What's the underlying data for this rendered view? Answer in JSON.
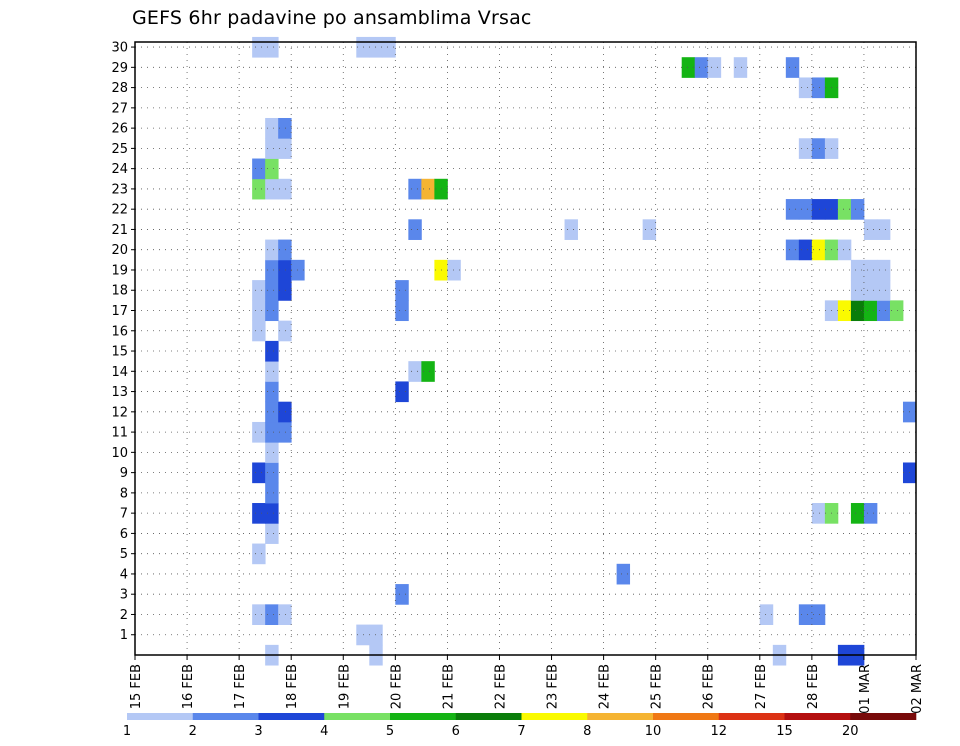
{
  "chart_data": {
    "type": "heatmap",
    "title": "GEFS 6hr padavine po ansamblima Vrsac",
    "xlabel": "",
    "ylabel": "",
    "x_start_date": "15 FEB",
    "x_tick_labels": [
      "15 FEB",
      "16 FEB",
      "17 FEB",
      "18 FEB",
      "19 FEB",
      "20 FEB",
      "21 FEB",
      "22 FEB",
      "23 FEB",
      "24 FEB",
      "25 FEB",
      "26 FEB",
      "27 FEB",
      "28 FEB",
      "01 MAR",
      "02 MAR"
    ],
    "xlim_days": [
      0,
      15
    ],
    "y_tick_labels": [
      "1",
      "2",
      "3",
      "4",
      "5",
      "6",
      "7",
      "8",
      "9",
      "10",
      "11",
      "12",
      "13",
      "14",
      "15",
      "16",
      "17",
      "18",
      "19",
      "20",
      "21",
      "22",
      "23",
      "24",
      "25",
      "26",
      "27",
      "28",
      "29",
      "30"
    ],
    "ylim": [
      0,
      30
    ],
    "grid": true,
    "colorbar": {
      "labels": [
        "1",
        "2",
        "3",
        "4",
        "5",
        "6",
        "7",
        "8",
        "10",
        "12",
        "15",
        "20"
      ],
      "colors": [
        "#b4c8f5",
        "#5a87eb",
        "#1e46d7",
        "#78e164",
        "#14b414",
        "#0a7d0a",
        "#fafa00",
        "#f5b432",
        "#f07814",
        "#dc3214",
        "#b40f0f",
        "#780a0a"
      ]
    },
    "cells": [
      {
        "m": 0,
        "d": 17.75,
        "c": 1
      },
      {
        "m": 0,
        "d": 19.75,
        "c": 1
      },
      {
        "m": 0,
        "d": 27.5,
        "c": 1
      },
      {
        "m": 0,
        "d": 28.75,
        "c": 3
      },
      {
        "m": 0,
        "d": 29.0,
        "c": 3
      },
      {
        "m": 1,
        "d": 19.5,
        "c": 1
      },
      {
        "m": 1,
        "d": 19.75,
        "c": 1
      },
      {
        "m": 2,
        "d": 17.5,
        "c": 1
      },
      {
        "m": 2,
        "d": 17.75,
        "c": 2
      },
      {
        "m": 2,
        "d": 18.0,
        "c": 1
      },
      {
        "m": 2,
        "d": 27.25,
        "c": 1
      },
      {
        "m": 2,
        "d": 28.0,
        "c": 2
      },
      {
        "m": 2,
        "d": 28.25,
        "c": 2
      },
      {
        "m": 3,
        "d": 20.25,
        "c": 2
      },
      {
        "m": 4,
        "d": 24.5,
        "c": 2
      },
      {
        "m": 5,
        "d": 17.5,
        "c": 1
      },
      {
        "m": 6,
        "d": 17.75,
        "c": 1
      },
      {
        "m": 7,
        "d": 17.5,
        "c": 3
      },
      {
        "m": 7,
        "d": 17.75,
        "c": 3
      },
      {
        "m": 7,
        "d": 28.25,
        "c": 1
      },
      {
        "m": 7,
        "d": 28.5,
        "c": 4
      },
      {
        "m": 7,
        "d": 29.0,
        "c": 5
      },
      {
        "m": 7,
        "d": 29.25,
        "c": 2
      },
      {
        "m": 8,
        "d": 17.75,
        "c": 2
      },
      {
        "m": 9,
        "d": 17.5,
        "c": 3
      },
      {
        "m": 9,
        "d": 17.75,
        "c": 2
      },
      {
        "m": 9,
        "d": 30.0,
        "c": 3
      },
      {
        "m": 10,
        "d": 17.75,
        "c": 1
      },
      {
        "m": 11,
        "d": 17.5,
        "c": 1
      },
      {
        "m": 11,
        "d": 17.75,
        "c": 2
      },
      {
        "m": 11,
        "d": 18.0,
        "c": 2
      },
      {
        "m": 12,
        "d": 17.75,
        "c": 2
      },
      {
        "m": 12,
        "d": 18.0,
        "c": 3
      },
      {
        "m": 12,
        "d": 30.0,
        "c": 2
      },
      {
        "m": 13,
        "d": 17.75,
        "c": 2
      },
      {
        "m": 13,
        "d": 20.25,
        "c": 3
      },
      {
        "m": 14,
        "d": 17.75,
        "c": 1
      },
      {
        "m": 14,
        "d": 20.5,
        "c": 1
      },
      {
        "m": 14,
        "d": 20.75,
        "c": 5
      },
      {
        "m": 15,
        "d": 17.75,
        "c": 3
      },
      {
        "m": 16,
        "d": 17.5,
        "c": 1
      },
      {
        "m": 16,
        "d": 18.0,
        "c": 1
      },
      {
        "m": 17,
        "d": 17.5,
        "c": 1
      },
      {
        "m": 17,
        "d": 17.75,
        "c": 2
      },
      {
        "m": 17,
        "d": 20.25,
        "c": 2
      },
      {
        "m": 17,
        "d": 28.5,
        "c": 1
      },
      {
        "m": 17,
        "d": 28.75,
        "c": 7
      },
      {
        "m": 17,
        "d": 29.0,
        "c": 6
      },
      {
        "m": 17,
        "d": 29.25,
        "c": 5
      },
      {
        "m": 17,
        "d": 29.5,
        "c": 2
      },
      {
        "m": 17,
        "d": 29.75,
        "c": 4
      },
      {
        "m": 18,
        "d": 17.5,
        "c": 1
      },
      {
        "m": 18,
        "d": 17.75,
        "c": 2
      },
      {
        "m": 18,
        "d": 18.0,
        "c": 3
      },
      {
        "m": 18,
        "d": 20.25,
        "c": 2
      },
      {
        "m": 18,
        "d": 29.0,
        "c": 1
      },
      {
        "m": 18,
        "d": 29.25,
        "c": 1
      },
      {
        "m": 18,
        "d": 29.5,
        "c": 1
      },
      {
        "m": 19,
        "d": 17.75,
        "c": 2
      },
      {
        "m": 19,
        "d": 18.0,
        "c": 3
      },
      {
        "m": 19,
        "d": 18.25,
        "c": 2
      },
      {
        "m": 19,
        "d": 21.0,
        "c": 7
      },
      {
        "m": 19,
        "d": 21.25,
        "c": 1
      },
      {
        "m": 19,
        "d": 29.0,
        "c": 1
      },
      {
        "m": 19,
        "d": 29.25,
        "c": 1
      },
      {
        "m": 19,
        "d": 29.5,
        "c": 1
      },
      {
        "m": 20,
        "d": 17.75,
        "c": 1
      },
      {
        "m": 20,
        "d": 18.0,
        "c": 2
      },
      {
        "m": 20,
        "d": 27.75,
        "c": 2
      },
      {
        "m": 20,
        "d": 28.0,
        "c": 3
      },
      {
        "m": 20,
        "d": 28.25,
        "c": 7
      },
      {
        "m": 20,
        "d": 28.5,
        "c": 4
      },
      {
        "m": 20,
        "d": 28.75,
        "c": 1
      },
      {
        "m": 21,
        "d": 20.5,
        "c": 2
      },
      {
        "m": 21,
        "d": 23.5,
        "c": 1
      },
      {
        "m": 21,
        "d": 25.0,
        "c": 1
      },
      {
        "m": 21,
        "d": 29.25,
        "c": 1
      },
      {
        "m": 21,
        "d": 29.5,
        "c": 1
      },
      {
        "m": 22,
        "d": 27.75,
        "c": 2
      },
      {
        "m": 22,
        "d": 28.0,
        "c": 2
      },
      {
        "m": 22,
        "d": 28.25,
        "c": 3
      },
      {
        "m": 22,
        "d": 28.5,
        "c": 3
      },
      {
        "m": 22,
        "d": 28.75,
        "c": 4
      },
      {
        "m": 22,
        "d": 29.0,
        "c": 2
      },
      {
        "m": 23,
        "d": 17.5,
        "c": 4
      },
      {
        "m": 23,
        "d": 17.75,
        "c": 1
      },
      {
        "m": 23,
        "d": 18.0,
        "c": 1
      },
      {
        "m": 23,
        "d": 20.5,
        "c": 2
      },
      {
        "m": 23,
        "d": 20.75,
        "c": 8
      },
      {
        "m": 23,
        "d": 21.0,
        "c": 5
      },
      {
        "m": 24,
        "d": 17.5,
        "c": 2
      },
      {
        "m": 24,
        "d": 17.75,
        "c": 4
      },
      {
        "m": 25,
        "d": 17.75,
        "c": 1
      },
      {
        "m": 25,
        "d": 18.0,
        "c": 1
      },
      {
        "m": 25,
        "d": 28.0,
        "c": 1
      },
      {
        "m": 25,
        "d": 28.25,
        "c": 2
      },
      {
        "m": 25,
        "d": 28.5,
        "c": 1
      },
      {
        "m": 26,
        "d": 17.75,
        "c": 1
      },
      {
        "m": 26,
        "d": 18.0,
        "c": 2
      },
      {
        "m": 28,
        "d": 28.0,
        "c": 1
      },
      {
        "m": 28,
        "d": 28.25,
        "c": 2
      },
      {
        "m": 28,
        "d": 28.5,
        "c": 5
      },
      {
        "m": 29,
        "d": 25.75,
        "c": 5
      },
      {
        "m": 29,
        "d": 26.0,
        "c": 2
      },
      {
        "m": 29,
        "d": 26.25,
        "c": 1
      },
      {
        "m": 29,
        "d": 26.75,
        "c": 1
      },
      {
        "m": 29,
        "d": 27.75,
        "c": 2
      },
      {
        "m": 30,
        "d": 17.5,
        "c": 1
      },
      {
        "m": 30,
        "d": 17.75,
        "c": 1
      },
      {
        "m": 30,
        "d": 19.5,
        "c": 1
      },
      {
        "m": 30,
        "d": 19.75,
        "c": 1
      },
      {
        "m": 30,
        "d": 20.0,
        "c": 1
      }
    ]
  }
}
